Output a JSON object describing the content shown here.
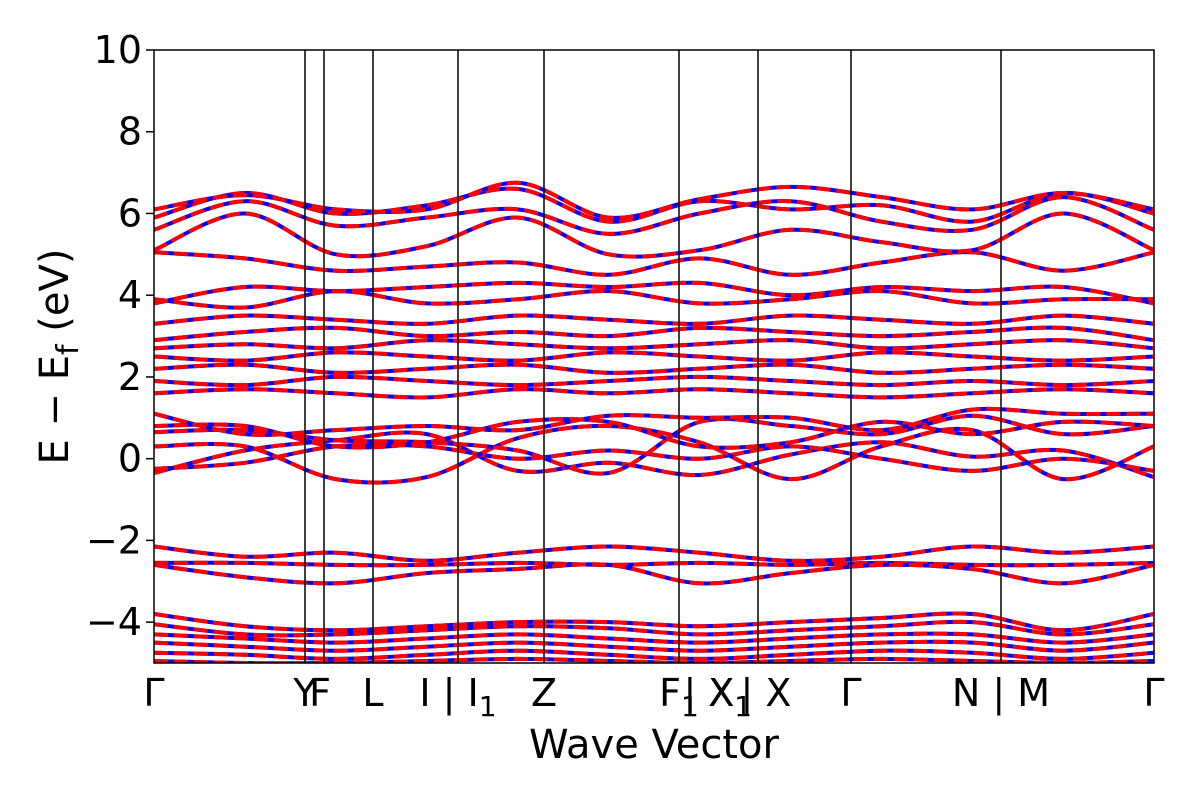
{
  "chart_data": {
    "type": "line",
    "xlabel": "Wave Vector",
    "ylabel": "E − E_f (eV)",
    "ylabel_parts": {
      "main": "E  −  E",
      "sub": "f",
      "unit": " (eV)"
    },
    "ylim": [
      -5,
      10
    ],
    "yticks": [
      -4,
      -2,
      0,
      2,
      4,
      6,
      8,
      10
    ],
    "ytick_labels": [
      "−4",
      "−2",
      "0",
      "2",
      "4",
      "6",
      "8",
      "10"
    ],
    "kpath_segments": [
      0,
      0.151,
      0.17,
      0.219,
      0.304,
      0.39,
      0.525,
      0.604,
      0.697,
      0.847,
      1.0
    ],
    "kpoint_labels": [
      {
        "text": "Γ",
        "sub": ""
      },
      {
        "text": "Y",
        "sub": ""
      },
      {
        "text": "F",
        "sub": ""
      },
      {
        "text": "L",
        "sub": ""
      },
      {
        "text": "I | I",
        "sub": "1"
      },
      {
        "text": "Z",
        "sub": ""
      },
      {
        "text": "F",
        "sub": "1"
      },
      {
        "text": " | X",
        "sub": ""
      },
      {
        "text": "X",
        "sub": "1"
      },
      {
        "text": " | X",
        "sub": ""
      },
      {
        "text": "Γ",
        "sub": ""
      },
      {
        "text": "N | M",
        "sub": ""
      },
      {
        "text": "Γ",
        "sub": ""
      }
    ],
    "series": [
      {
        "style": "solid",
        "color": "#0000ff"
      },
      {
        "style": "dashed",
        "color": "#ff0000"
      }
    ],
    "bands": [
      [
        -0.35,
        0.2,
        0.45,
        0.6,
        -0.3,
        -0.1,
        -0.4,
        0.1,
        0.4,
        0.05,
        0.2,
        -0.45
      ],
      [
        -0.25,
        -0.1,
        0.3,
        0.3,
        0.0,
        0.2,
        0.0,
        0.3,
        0.0,
        -0.3,
        0.0,
        -0.3
      ],
      [
        0.3,
        0.3,
        -0.5,
        -0.45,
        0.5,
        0.8,
        0.4,
        -0.5,
        0.3,
        0.7,
        -0.5,
        0.3
      ],
      [
        0.65,
        0.7,
        0.45,
        0.4,
        0.2,
        -0.35,
        0.9,
        0.8,
        0.6,
        1.05,
        0.6,
        0.8
      ],
      [
        0.8,
        0.8,
        0.3,
        0.4,
        0.9,
        0.9,
        0.3,
        0.4,
        0.9,
        0.6,
        0.9,
        0.8
      ],
      [
        1.1,
        0.6,
        0.7,
        0.8,
        0.7,
        1.05,
        1.0,
        1.0,
        0.7,
        1.2,
        1.1,
        1.1
      ],
      [
        1.6,
        1.7,
        1.6,
        1.5,
        1.7,
        1.6,
        1.7,
        1.6,
        1.5,
        1.6,
        1.7,
        1.6
      ],
      [
        1.9,
        1.8,
        2.0,
        1.9,
        1.8,
        1.9,
        2.0,
        1.9,
        1.8,
        1.9,
        1.8,
        1.9
      ],
      [
        2.2,
        2.3,
        2.1,
        2.2,
        2.3,
        2.1,
        2.2,
        2.3,
        2.1,
        2.2,
        2.3,
        2.2
      ],
      [
        2.5,
        2.4,
        2.6,
        2.5,
        2.4,
        2.6,
        2.5,
        2.4,
        2.6,
        2.5,
        2.4,
        2.5
      ],
      [
        2.7,
        2.8,
        2.7,
        2.9,
        2.8,
        2.7,
        2.8,
        2.9,
        2.7,
        2.8,
        2.9,
        2.7
      ],
      [
        2.9,
        3.1,
        3.2,
        3.0,
        3.1,
        3.0,
        3.2,
        3.1,
        3.0,
        3.1,
        3.2,
        2.9
      ],
      [
        3.3,
        3.5,
        3.4,
        3.3,
        3.5,
        3.4,
        3.3,
        3.5,
        3.4,
        3.3,
        3.5,
        3.3
      ],
      [
        3.8,
        4.2,
        4.1,
        4.2,
        4.3,
        4.2,
        4.3,
        4.0,
        4.2,
        4.1,
        4.2,
        3.8
      ],
      [
        3.9,
        3.7,
        4.1,
        3.8,
        3.9,
        4.1,
        3.8,
        3.9,
        4.1,
        3.8,
        3.9,
        3.9
      ],
      [
        5.05,
        4.9,
        4.6,
        4.7,
        4.8,
        4.5,
        4.9,
        4.5,
        4.8,
        5.05,
        4.6,
        5.05
      ],
      [
        5.1,
        6.0,
        5.0,
        5.2,
        5.9,
        5.0,
        5.1,
        5.6,
        5.3,
        5.1,
        6.0,
        5.1
      ],
      [
        5.6,
        6.3,
        5.7,
        5.9,
        6.1,
        5.5,
        6.0,
        6.3,
        5.8,
        5.6,
        6.4,
        5.6
      ],
      [
        5.9,
        6.5,
        6.0,
        6.2,
        6.6,
        5.8,
        6.3,
        6.1,
        6.2,
        5.8,
        6.5,
        6.0
      ],
      [
        6.1,
        6.45,
        6.1,
        6.1,
        6.75,
        5.9,
        6.35,
        6.65,
        6.4,
        6.1,
        6.5,
        6.1
      ],
      [
        -2.15,
        -2.4,
        -2.3,
        -2.5,
        -2.3,
        -2.15,
        -2.3,
        -2.5,
        -2.4,
        -2.15,
        -2.3,
        -2.15
      ],
      [
        -2.55,
        -2.55,
        -2.6,
        -2.6,
        -2.55,
        -2.6,
        -2.55,
        -2.6,
        -2.55,
        -2.6,
        -2.6,
        -2.55
      ],
      [
        -2.6,
        -2.9,
        -3.05,
        -2.8,
        -2.7,
        -2.6,
        -3.05,
        -2.8,
        -2.6,
        -2.7,
        -3.05,
        -2.6
      ],
      [
        -3.8,
        -4.1,
        -4.2,
        -4.1,
        -4.0,
        -4.0,
        -4.1,
        -4.0,
        -3.9,
        -3.8,
        -4.2,
        -3.8
      ],
      [
        -4.05,
        -4.3,
        -4.3,
        -4.2,
        -4.1,
        -4.15,
        -4.3,
        -4.2,
        -4.1,
        -4.0,
        -4.3,
        -4.05
      ],
      [
        -4.3,
        -4.4,
        -4.5,
        -4.4,
        -4.3,
        -4.4,
        -4.5,
        -4.4,
        -4.3,
        -4.3,
        -4.5,
        -4.3
      ],
      [
        -4.5,
        -4.6,
        -4.7,
        -4.6,
        -4.5,
        -4.6,
        -4.7,
        -4.6,
        -4.5,
        -4.5,
        -4.7,
        -4.5
      ],
      [
        -4.75,
        -4.8,
        -4.9,
        -4.8,
        -4.7,
        -4.8,
        -4.9,
        -4.8,
        -4.7,
        -4.75,
        -4.9,
        -4.75
      ],
      [
        -4.95,
        -5.0,
        -5.0,
        -4.95,
        -4.9,
        -4.95,
        -5.0,
        -4.95,
        -4.9,
        -4.95,
        -5.0,
        -4.95
      ]
    ]
  }
}
